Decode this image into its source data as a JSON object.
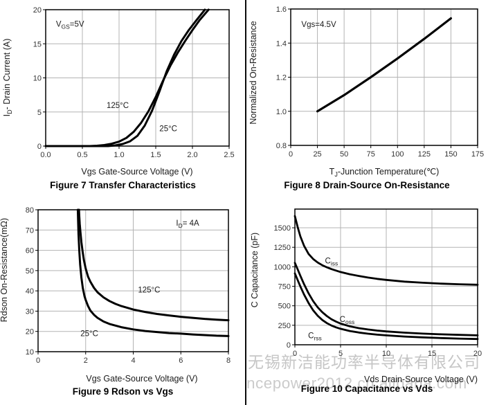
{
  "page": {
    "background": "#ffffff",
    "divider_color": "#0a0a0a",
    "grid_color": "#b3b3b3",
    "curve_color": "#000000"
  },
  "watermark": {
    "line1": "无锡新洁能功率半导体有限公司",
    "line2": "ncepower2012.cn.alibaba.com",
    "color": "#c6c6c6"
  },
  "chart_data": [
    {
      "id": "fig7",
      "type": "line",
      "caption": "Figure 7 Transfer Characteristics",
      "xlabel": "Vgs Gate-Source Voltage (V)",
      "ylabel": "ID- Drain Current (A)",
      "xlabel_segments": [
        {
          "t": "Vgs Gate-Source Voltage (V)"
        }
      ],
      "ylabel_segments": [
        {
          "t": "I"
        },
        {
          "t": "D",
          "sub": true
        },
        {
          "t": "- Drain Current (A)"
        }
      ],
      "xlim": [
        0,
        2.5
      ],
      "ylim": [
        0,
        20
      ],
      "grid": true,
      "line_width": 3,
      "xticks": {
        "values": [
          0,
          0.5,
          1,
          1.5,
          2,
          2.5
        ],
        "labels": [
          "0.0",
          "0.5",
          "1.0",
          "1.5",
          "2.0",
          "2.5"
        ]
      },
      "yticks": {
        "values": [
          0,
          5,
          10,
          15,
          20
        ],
        "labels": [
          "0",
          "5",
          "10",
          "15",
          "20"
        ]
      },
      "annotations": [
        {
          "text": "VGS=5V",
          "segments": [
            {
              "t": "V"
            },
            {
              "t": "GS",
              "sub": true
            },
            {
              "t": "=5V"
            }
          ],
          "x": 0.14,
          "y": 17.9
        },
        {
          "text": "125°C",
          "segments": [
            {
              "t": "125°C"
            }
          ],
          "x": 0.83,
          "y": 6.0
        },
        {
          "text": "25°C",
          "segments": [
            {
              "t": "25°C"
            }
          ],
          "x": 1.55,
          "y": 2.6
        }
      ],
      "series": [
        {
          "name": "125°C",
          "points": [
            [
              0,
              0
            ],
            [
              0.6,
              0
            ],
            [
              0.7,
              0.05
            ],
            [
              0.8,
              0.15
            ],
            [
              0.9,
              0.35
            ],
            [
              1.0,
              0.65
            ],
            [
              1.1,
              1.2
            ],
            [
              1.2,
              2.1
            ],
            [
              1.3,
              3.4
            ],
            [
              1.4,
              5.1
            ],
            [
              1.5,
              7.2
            ],
            [
              1.6,
              9.6
            ],
            [
              1.7,
              11.8
            ],
            [
              1.8,
              13.7
            ],
            [
              1.9,
              15.4
            ],
            [
              2.0,
              17.0
            ],
            [
              2.1,
              18.5
            ],
            [
              2.22,
              20
            ]
          ]
        },
        {
          "name": "25°C",
          "points": [
            [
              0,
              0
            ],
            [
              0.85,
              0
            ],
            [
              0.95,
              0.1
            ],
            [
              1.05,
              0.3
            ],
            [
              1.15,
              0.7
            ],
            [
              1.25,
              1.5
            ],
            [
              1.35,
              3.0
            ],
            [
              1.45,
              5.2
            ],
            [
              1.55,
              8.0
            ],
            [
              1.65,
              11.0
            ],
            [
              1.75,
              13.4
            ],
            [
              1.85,
              15.4
            ],
            [
              1.95,
              17.0
            ],
            [
              2.05,
              18.4
            ],
            [
              2.17,
              20
            ]
          ]
        }
      ]
    },
    {
      "id": "fig8",
      "type": "line",
      "caption": "Figure 8 Drain-Source On-Resistance",
      "xlabel": "TJ-Junction Temperature(℃)",
      "ylabel": "Normalized On-Resistance",
      "xlabel_segments": [
        {
          "t": "T"
        },
        {
          "t": "J",
          "sub": true
        },
        {
          "t": "-Junction Temperature(℃)"
        }
      ],
      "ylabel_segments": [
        {
          "t": "Normalized On-Resistance"
        }
      ],
      "xlim": [
        0,
        175
      ],
      "ylim": [
        0.8,
        1.6
      ],
      "grid": true,
      "line_width": 3.2,
      "xticks": {
        "values": [
          0,
          25,
          50,
          75,
          100,
          125,
          150,
          175
        ],
        "labels": [
          "0",
          "25",
          "50",
          "75",
          "100",
          "125",
          "150",
          "175"
        ]
      },
      "yticks": {
        "values": [
          0.8,
          1.0,
          1.2,
          1.4,
          1.6
        ],
        "labels": [
          "0.8",
          "1.0",
          "1.2",
          "1.4",
          "1.6"
        ]
      },
      "annotations": [
        {
          "text": "Vgs=4.5V",
          "segments": [
            {
              "t": "Vgs=4.5V"
            }
          ],
          "x": 10,
          "y": 1.51
        }
      ],
      "series": [
        {
          "name": "normalized RDS(on)",
          "points": [
            [
              25,
              1.0
            ],
            [
              50,
              1.095
            ],
            [
              75,
              1.2
            ],
            [
              100,
              1.31
            ],
            [
              125,
              1.425
            ],
            [
              150,
              1.545
            ]
          ]
        }
      ]
    },
    {
      "id": "fig9",
      "type": "line",
      "caption": "Figure 9 Rdson vs Vgs",
      "xlabel": "Vgs Gate-Source Voltage (V)",
      "ylabel": "Rdson On-Resistance(mΩ)",
      "xlabel_segments": [
        {
          "t": "Vgs Gate-Source Voltage (V)"
        }
      ],
      "ylabel_segments": [
        {
          "t": "Rdson On-Resistance(mΩ)"
        }
      ],
      "xlim": [
        0,
        8
      ],
      "ylim": [
        10,
        80
      ],
      "grid": true,
      "line_width": 3,
      "xticks": {
        "values": [
          0,
          2,
          4,
          6,
          8
        ],
        "labels": [
          "0",
          "2",
          "4",
          "6",
          "8"
        ]
      },
      "yticks": {
        "values": [
          10,
          20,
          30,
          40,
          50,
          60,
          70,
          80
        ],
        "labels": [
          "10",
          "20",
          "30",
          "40",
          "50",
          "60",
          "70",
          "80"
        ]
      },
      "annotations": [
        {
          "text": "ID= 4A",
          "segments": [
            {
              "t": "I"
            },
            {
              "t": "D",
              "sub": true
            },
            {
              "t": "= 4A"
            }
          ],
          "x": 5.8,
          "y": 73.5
        },
        {
          "text": "125°C",
          "segments": [
            {
              "t": "125°C"
            }
          ],
          "x": 4.2,
          "y": 40.5
        },
        {
          "text": "25°C",
          "segments": [
            {
              "t": "25°C"
            }
          ],
          "x": 1.78,
          "y": 19.0
        }
      ],
      "series": [
        {
          "name": "125°C",
          "points": [
            [
              1.72,
              80
            ],
            [
              1.73,
              77
            ],
            [
              1.75,
              73
            ],
            [
              1.78,
              69
            ],
            [
              1.82,
              64
            ],
            [
              1.87,
              59.5
            ],
            [
              1.93,
              55
            ],
            [
              2.0,
              51
            ],
            [
              2.1,
              47
            ],
            [
              2.2,
              44.5
            ],
            [
              2.35,
              41.5
            ],
            [
              2.5,
              39.3
            ],
            [
              2.75,
              36.8
            ],
            [
              3.0,
              35
            ],
            [
              3.25,
              33.6
            ],
            [
              3.5,
              32.5
            ],
            [
              4.0,
              30.8
            ],
            [
              4.5,
              29.6
            ],
            [
              5.0,
              28.6
            ],
            [
              5.5,
              27.9
            ],
            [
              6.0,
              27.2
            ],
            [
              6.5,
              26.7
            ],
            [
              7.0,
              26.2
            ],
            [
              7.5,
              25.8
            ],
            [
              8.0,
              25.5
            ]
          ]
        },
        {
          "name": "25°C",
          "points": [
            [
              1.67,
              80
            ],
            [
              1.68,
              75
            ],
            [
              1.7,
              68
            ],
            [
              1.73,
              60
            ],
            [
              1.77,
              53
            ],
            [
              1.82,
              46.5
            ],
            [
              1.88,
              41.5
            ],
            [
              1.95,
              37.5
            ],
            [
              2.0,
              35.5
            ],
            [
              2.1,
              32.5
            ],
            [
              2.2,
              30.3
            ],
            [
              2.35,
              28.2
            ],
            [
              2.5,
              26.7
            ],
            [
              2.75,
              24.9
            ],
            [
              3.0,
              23.7
            ],
            [
              3.5,
              22.1
            ],
            [
              4.0,
              21
            ],
            [
              4.5,
              20.2
            ],
            [
              5.0,
              19.7
            ],
            [
              5.5,
              19.2
            ],
            [
              6.0,
              18.9
            ],
            [
              6.5,
              18.5
            ],
            [
              7.0,
              18.2
            ],
            [
              7.5,
              17.9
            ],
            [
              8.0,
              17.7
            ]
          ]
        }
      ]
    },
    {
      "id": "fig10",
      "type": "line",
      "caption": "Figure 10 Capacitance vs Vds",
      "xlabel": "Vds Drain-Source Voltage (V)",
      "ylabel": "C Capacitance (pF)",
      "xlabel_segments": [
        {
          "t": "Vds Drain-Source Voltage (V)"
        }
      ],
      "ylabel_segments": [
        {
          "t": "C Capacitance (pF)"
        }
      ],
      "xlim": [
        0,
        20
      ],
      "ylim": [
        0,
        1740
      ],
      "grid": true,
      "line_width": 2.8,
      "xticks": {
        "values": [
          0,
          5,
          10,
          15,
          20
        ],
        "labels": [
          "0",
          "5",
          "10",
          "15",
          "20"
        ]
      },
      "yticks": {
        "values": [
          0,
          250,
          500,
          750,
          1000,
          1250,
          1500
        ],
        "labels": [
          "0",
          "250",
          "500",
          "750",
          "1000",
          "1250",
          "1500"
        ]
      },
      "annotations": [
        {
          "text": "Ciss",
          "segments": [
            {
              "t": "C"
            },
            {
              "t": "iss",
              "sub": true
            }
          ],
          "x": 3.3,
          "y": 1080
        },
        {
          "text": "Coss",
          "segments": [
            {
              "t": "C"
            },
            {
              "t": "oss",
              "sub": true
            }
          ],
          "x": 4.9,
          "y": 330
        },
        {
          "text": "Crss",
          "segments": [
            {
              "t": "C"
            },
            {
              "t": "rss",
              "sub": true
            }
          ],
          "x": 1.45,
          "y": 120
        }
      ],
      "series": [
        {
          "name": "Ciss",
          "points": [
            [
              0,
              1650
            ],
            [
              0.3,
              1510
            ],
            [
              0.6,
              1390
            ],
            [
              1,
              1270
            ],
            [
              1.5,
              1165
            ],
            [
              2,
              1100
            ],
            [
              2.5,
              1055
            ],
            [
              3,
              1020
            ],
            [
              3.5,
              993
            ],
            [
              4,
              970
            ],
            [
              5,
              933
            ],
            [
              6,
              905
            ],
            [
              7,
              882
            ],
            [
              8,
              862
            ],
            [
              9,
              845
            ],
            [
              10,
              832
            ],
            [
              12,
              810
            ],
            [
              14,
              795
            ],
            [
              16,
              784
            ],
            [
              18,
              776
            ],
            [
              20,
              770
            ]
          ]
        },
        {
          "name": "Coss",
          "points": [
            [
              0,
              1050
            ],
            [
              0.3,
              968
            ],
            [
              0.6,
              885
            ],
            [
              1,
              778
            ],
            [
              1.5,
              660
            ],
            [
              2,
              560
            ],
            [
              2.5,
              480
            ],
            [
              3,
              418
            ],
            [
              3.5,
              368
            ],
            [
              4,
              328
            ],
            [
              4.5,
              297
            ],
            [
              5,
              272
            ],
            [
              6,
              237
            ],
            [
              7,
              213
            ],
            [
              8,
              196
            ],
            [
              9,
              182
            ],
            [
              10,
              171
            ],
            [
              12,
              155
            ],
            [
              14,
              143
            ],
            [
              16,
              134
            ],
            [
              18,
              127
            ],
            [
              20,
              121
            ]
          ]
        },
        {
          "name": "Crss",
          "points": [
            [
              0,
              915
            ],
            [
              0.3,
              830
            ],
            [
              0.6,
              748
            ],
            [
              1,
              645
            ],
            [
              1.5,
              535
            ],
            [
              2,
              442
            ],
            [
              2.5,
              372
            ],
            [
              3,
              318
            ],
            [
              3.5,
              278
            ],
            [
              4,
              247
            ],
            [
              4.5,
              224
            ],
            [
              5,
              205
            ],
            [
              6,
              177
            ],
            [
              7,
              157
            ],
            [
              8,
              142
            ],
            [
              9,
              130
            ],
            [
              10,
              121
            ],
            [
              12,
              106
            ],
            [
              14,
              95
            ],
            [
              16,
              86
            ],
            [
              18,
              79
            ],
            [
              20,
              74
            ]
          ]
        }
      ]
    }
  ]
}
